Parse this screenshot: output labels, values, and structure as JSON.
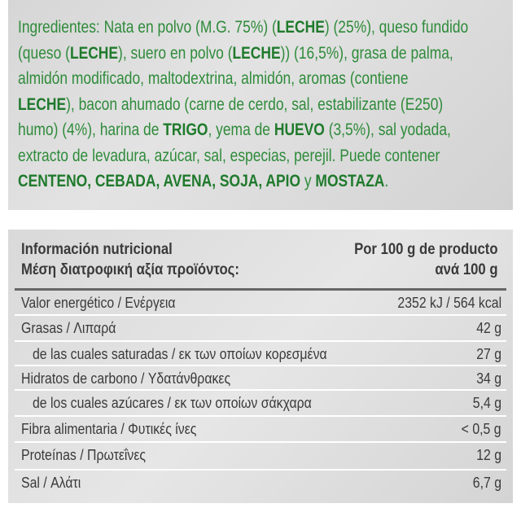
{
  "ingredients": [
    [
      {
        "text": "Ingredientes: Nata en polvo (M.G. 75%) (",
        "bold": false
      },
      {
        "text": "LECHE",
        "bold": true
      },
      {
        "text": ") (25%), queso fundido",
        "bold": false
      }
    ],
    [
      {
        "text": "(queso (",
        "bold": false
      },
      {
        "text": "LECHE",
        "bold": true
      },
      {
        "text": "), suero en polvo (",
        "bold": false
      },
      {
        "text": "LECHE",
        "bold": true
      },
      {
        "text": ")) (16,5%), grasa de palma,",
        "bold": false
      }
    ],
    [
      {
        "text": "almidón modificado, maltodextrina, almidón, aromas (contiene",
        "bold": false
      }
    ],
    [
      {
        "text": "LECHE",
        "bold": true
      },
      {
        "text": "), bacon ahumado (carne de cerdo, sal, estabilizante (E250)",
        "bold": false
      }
    ],
    [
      {
        "text": "humo) (4%), harina de ",
        "bold": false
      },
      {
        "text": "TRIGO",
        "bold": true
      },
      {
        "text": ", yema de ",
        "bold": false
      },
      {
        "text": "HUEVO",
        "bold": true
      },
      {
        "text": " (3,5%), sal yodada,",
        "bold": false
      }
    ],
    [
      {
        "text": "extracto de levadura, azúcar, sal, especias, perejil. Puede contener",
        "bold": false
      }
    ],
    [
      {
        "text": "CENTENO, CEBADA, AVENA, SOJA, APIO",
        "bold": true
      },
      {
        "text": " y ",
        "bold": false
      },
      {
        "text": "MOSTAZA",
        "bold": true
      },
      {
        "text": ".",
        "bold": false
      }
    ]
  ],
  "table": {
    "header": {
      "left": [
        "Información nutricional",
        "Μέση διατροφική αξία προϊόντος:"
      ],
      "right": [
        "Por 100 g de producto",
        "ανά 100 g"
      ]
    },
    "rows": [
      {
        "label": "Valor energético / Ενέργεια",
        "value": "2352 kJ / 564 kcal",
        "indent": false
      },
      {
        "label": "Grasas / Λιπαρά",
        "value": "42 g",
        "indent": false
      },
      {
        "label": "de las cuales saturadas / εκ των οποίων κορεσμένα",
        "value": "27 g",
        "indent": true
      },
      {
        "label": "Hidratos de carbono / Υδατάνθρακες",
        "value": "34 g",
        "indent": false
      },
      {
        "label": "de los cuales azúcares / εκ των οποίων σάκχαρα",
        "value": "5,4 g",
        "indent": true
      },
      {
        "label": "Fibra alimentaria / Φυτικές ίνες",
        "value": "< 0,5 g",
        "indent": false
      },
      {
        "label": "Proteínas / Πρωτεΐνες",
        "value": "12 g",
        "indent": false
      },
      {
        "label": "Sal / Αλάτι",
        "value": "6,7 g",
        "indent": false
      }
    ]
  }
}
